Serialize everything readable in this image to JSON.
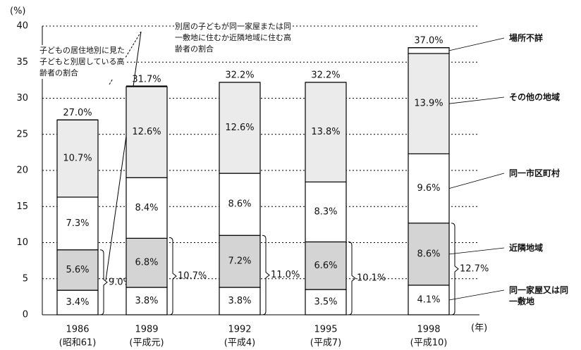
{
  "chart_data": {
    "type": "stacked_bar",
    "categories": [
      "1986",
      "1989",
      "1992",
      "1995",
      "1998"
    ],
    "era_labels": [
      "(昭和61)",
      "(平成元)",
      "(平成4)",
      "(平成7)",
      "(平成10)"
    ],
    "y_axis_label": "(%)",
    "x_axis_label": "(年)",
    "series": [
      {
        "name": "同一家屋又は同一敷地",
        "color": "#ffffff",
        "values": [
          3.4,
          3.8,
          3.8,
          3.5,
          4.1
        ],
        "value_labels": [
          "3.4%",
          "3.8%",
          "3.8%",
          "3.5%",
          "4.1%"
        ]
      },
      {
        "name": "近隣地域",
        "color": "#d4d4d4",
        "values": [
          5.6,
          6.8,
          7.2,
          6.6,
          8.6
        ],
        "value_labels": [
          "5.6%",
          "6.8%",
          "7.2%",
          "6.6%",
          "8.6%"
        ]
      },
      {
        "name": "同一市区町村",
        "color": "#ffffff",
        "values": [
          7.3,
          8.4,
          8.6,
          8.3,
          9.6
        ],
        "value_labels": [
          "7.3%",
          "8.4%",
          "8.6%",
          "8.3%",
          "9.6%"
        ]
      },
      {
        "name": "その他の地域",
        "color": "#ebebeb",
        "values": [
          10.7,
          12.6,
          12.6,
          13.8,
          13.9
        ],
        "value_labels": [
          "10.7%",
          "12.6%",
          "12.6%",
          "13.8%",
          "13.9%"
        ]
      },
      {
        "name": "場所不詳",
        "color": "#ffffff",
        "values": [
          null,
          null,
          null,
          null,
          0.8
        ]
      }
    ],
    "totals": [
      27.0,
      31.7,
      32.2,
      32.2,
      37.0
    ],
    "total_labels": [
      "27.0%",
      "31.7%",
      "32.2%",
      "32.2%",
      "37.0%"
    ],
    "near_totals": [
      9.0,
      10.7,
      11.0,
      10.1,
      12.7
    ],
    "near_total_labels": [
      "9.0%",
      "10.7%",
      "11.0%",
      "10.1%",
      "12.7%"
    ],
    "annotations": [
      "子どもの居住地別に見た子どもと別居している高齢者の割合",
      "別居の子どもが同一家屋または同一敷地に住むか近隣地域に住む高齢者の割合"
    ],
    "ylim": [
      0,
      40
    ],
    "yticks": [
      0,
      5,
      10,
      15,
      20,
      25,
      30,
      35,
      40
    ],
    "grid": true
  }
}
